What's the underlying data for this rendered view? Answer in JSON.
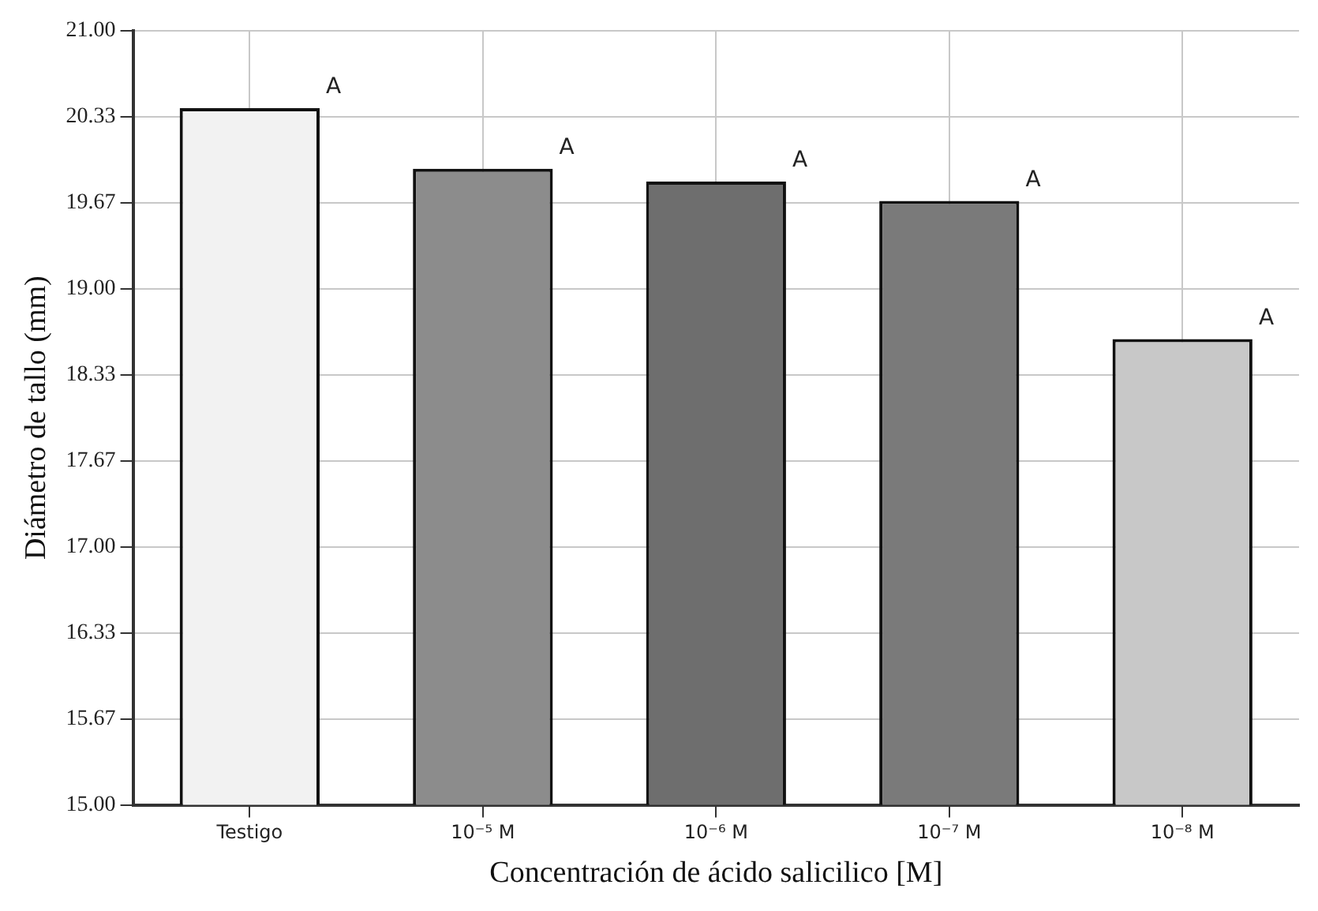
{
  "chart_data": {
    "type": "bar",
    "xlabel": "Concentración de ácido salicilico [M]",
    "ylabel": "Diámetro de tallo (mm)",
    "categories": [
      "Testigo",
      "10⁻⁵ M",
      "10⁻⁶ M",
      "10⁻⁷ M",
      "10⁻⁸ M"
    ],
    "values": [
      20.4,
      19.93,
      19.83,
      19.68,
      18.61
    ],
    "colors": [
      "#f2f2f2",
      "#8c8c8c",
      "#6e6e6e",
      "#7a7a7a",
      "#c8c8c8"
    ],
    "ylim": [
      15,
      21
    ],
    "yticks": [
      {
        "value": 15,
        "label": "15.00"
      },
      {
        "value": 15.667,
        "label": "15.67"
      },
      {
        "value": 16.333,
        "label": "16.33"
      },
      {
        "value": 17,
        "label": "17.00"
      },
      {
        "value": 17.667,
        "label": "17.67"
      },
      {
        "value": 18.333,
        "label": "18.33"
      },
      {
        "value": 19,
        "label": "19.00"
      },
      {
        "value": 19.667,
        "label": "19.67"
      },
      {
        "value": 20.333,
        "label": "20.33"
      },
      {
        "value": 21,
        "label": "21.00"
      }
    ],
    "grid": true,
    "annotations": [
      "A",
      "A",
      "A",
      "A",
      "A"
    ]
  }
}
